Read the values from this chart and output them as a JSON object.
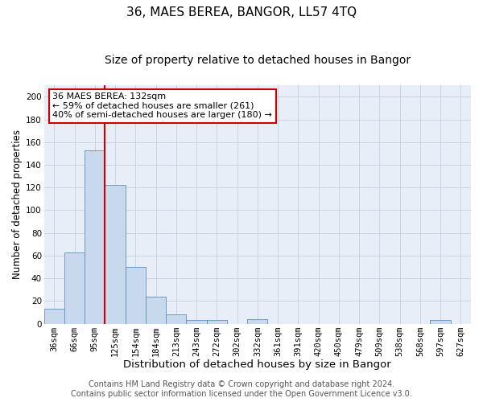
{
  "title": "36, MAES BEREA, BANGOR, LL57 4TQ",
  "subtitle": "Size of property relative to detached houses in Bangor",
  "xlabel": "Distribution of detached houses by size in Bangor",
  "ylabel": "Number of detached properties",
  "bar_labels": [
    "36sqm",
    "66sqm",
    "95sqm",
    "125sqm",
    "154sqm",
    "184sqm",
    "213sqm",
    "243sqm",
    "272sqm",
    "302sqm",
    "332sqm",
    "361sqm",
    "391sqm",
    "420sqm",
    "450sqm",
    "479sqm",
    "509sqm",
    "538sqm",
    "568sqm",
    "597sqm",
    "627sqm"
  ],
  "bar_values": [
    13,
    63,
    153,
    122,
    50,
    24,
    8,
    3,
    3,
    0,
    4,
    0,
    0,
    0,
    0,
    0,
    0,
    0,
    0,
    3,
    0
  ],
  "bar_color": "#c8d8ed",
  "bar_edge_color": "#6090bb",
  "vline_color": "#cc0000",
  "vline_pos": 3.5,
  "ylim": [
    0,
    210
  ],
  "yticks": [
    0,
    20,
    40,
    60,
    80,
    100,
    120,
    140,
    160,
    180,
    200
  ],
  "annotation_title": "36 MAES BEREA: 132sqm",
  "annotation_line1": "← 59% of detached houses are smaller (261)",
  "annotation_line2": "40% of semi-detached houses are larger (180) →",
  "annotation_box_facecolor": "#ffffff",
  "annotation_box_edgecolor": "#cc0000",
  "footer_line1": "Contains HM Land Registry data © Crown copyright and database right 2024.",
  "footer_line2": "Contains public sector information licensed under the Open Government Licence v3.0.",
  "plot_bg_color": "#e8eef8",
  "grid_color": "#c5cfdf",
  "title_fontsize": 11,
  "subtitle_fontsize": 10,
  "xlabel_fontsize": 9.5,
  "ylabel_fontsize": 8.5,
  "tick_fontsize": 7.5,
  "ann_fontsize": 8,
  "footer_fontsize": 7
}
